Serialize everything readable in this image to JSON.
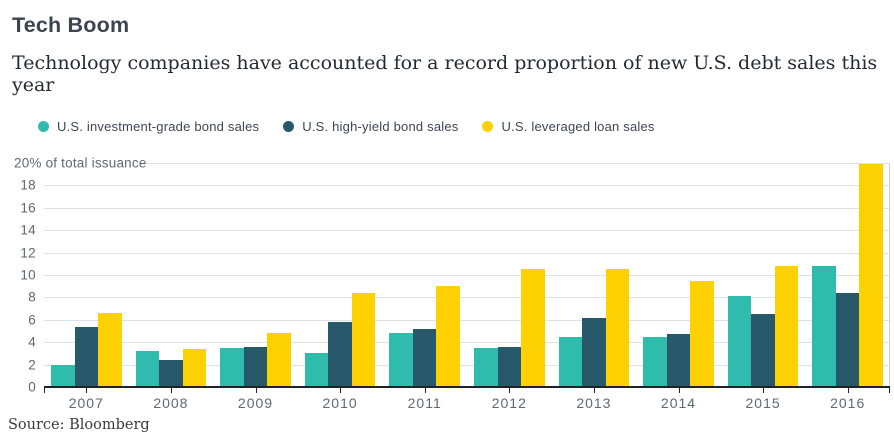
{
  "header": {
    "title": "Tech Boom",
    "subtitle": "Technology companies have accounted for a record proportion of new U.S. debt sales this year"
  },
  "footer": {
    "source": "Source: Bloomberg"
  },
  "colors": {
    "teal": "#2fbcad",
    "navy": "#27596b",
    "yellow": "#fdd102",
    "grid": "#dbe2e8",
    "axis": "#1f2326",
    "tick_text": "#5d6a73",
    "right_border": "#c9d2d8"
  },
  "chart_data": {
    "type": "bar",
    "title": "Tech Boom",
    "subtitle": "Technology companies have accounted for a record proportion of new U.S. debt sales this year",
    "source": "Source: Bloomberg",
    "categories": [
      "2007",
      "2008",
      "2009",
      "2010",
      "2011",
      "2012",
      "2013",
      "2014",
      "2015",
      "2016"
    ],
    "series": [
      {
        "name": "U.S. investment-grade bond sales",
        "color": "#2fbcad",
        "values": [
          2.0,
          3.2,
          3.5,
          3.0,
          4.8,
          3.5,
          4.5,
          4.5,
          8.1,
          10.8
        ]
      },
      {
        "name": "U.S. high-yield bond sales",
        "color": "#27596b",
        "values": [
          5.4,
          2.4,
          3.6,
          5.8,
          5.2,
          3.6,
          6.2,
          4.7,
          6.5,
          8.4
        ]
      },
      {
        "name": "U.S. leveraged loan sales",
        "color": "#fdd102",
        "values": [
          6.6,
          3.4,
          4.8,
          8.4,
          9.0,
          10.5,
          10.5,
          9.5,
          10.8,
          19.9
        ]
      }
    ],
    "xlabel": "",
    "ylabel": "",
    "ylabel_top": "20% of total issuance",
    "ylim": [
      0,
      20
    ],
    "ytick_step": 2,
    "grid": true,
    "legend_position": "top"
  }
}
